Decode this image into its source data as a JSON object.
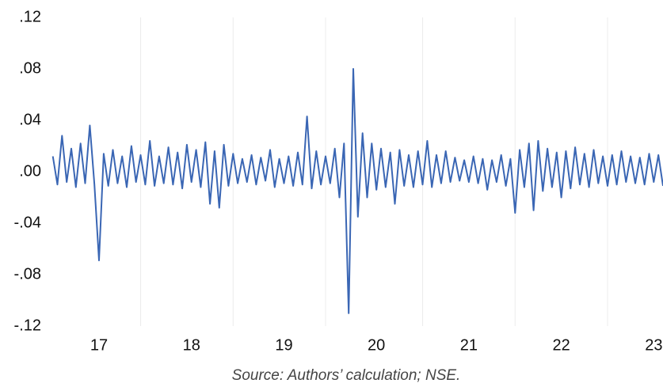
{
  "chart_data": {
    "type": "line",
    "caption": "Source: Authors’ calculation; NSE.",
    "x": [
      16.5,
      16.55,
      16.6,
      16.65,
      16.7,
      16.75,
      16.8,
      16.85,
      16.9,
      16.95,
      17.0,
      17.05,
      17.1,
      17.15,
      17.2,
      17.25,
      17.3,
      17.35,
      17.4,
      17.45,
      17.5,
      17.55,
      17.6,
      17.65,
      17.7,
      17.75,
      17.8,
      17.85,
      17.9,
      17.95,
      18.0,
      18.05,
      18.1,
      18.15,
      18.2,
      18.25,
      18.3,
      18.35,
      18.4,
      18.45,
      18.5,
      18.55,
      18.6,
      18.65,
      18.7,
      18.75,
      18.8,
      18.85,
      18.9,
      18.95,
      19.0,
      19.05,
      19.1,
      19.15,
      19.2,
      19.25,
      19.3,
      19.35,
      19.4,
      19.45,
      19.5,
      19.55,
      19.6,
      19.65,
      19.7,
      19.75,
      19.8,
      19.85,
      19.9,
      19.95,
      20.0,
      20.05,
      20.1,
      20.15,
      20.2,
      20.25,
      20.3,
      20.35,
      20.4,
      20.45,
      20.5,
      20.55,
      20.6,
      20.65,
      20.7,
      20.75,
      20.8,
      20.85,
      20.9,
      20.95,
      21.0,
      21.05,
      21.1,
      21.15,
      21.2,
      21.25,
      21.3,
      21.35,
      21.4,
      21.45,
      21.5,
      21.55,
      21.6,
      21.65,
      21.7,
      21.75,
      21.8,
      21.85,
      21.9,
      21.95,
      22.0,
      22.05,
      22.1,
      22.15,
      22.2,
      22.25,
      22.3,
      22.35,
      22.4,
      22.45,
      22.5,
      22.55,
      22.6,
      22.65,
      22.7,
      22.75,
      22.8,
      22.85,
      22.9,
      22.95,
      23.0,
      23.05,
      23.1
    ],
    "series": [
      {
        "color": "#3a66b4",
        "values": [
          0.012,
          -0.01,
          0.028,
          -0.008,
          0.018,
          -0.012,
          0.022,
          -0.009,
          0.036,
          -0.01,
          -0.069,
          0.014,
          -0.011,
          0.017,
          -0.009,
          0.012,
          -0.012,
          0.02,
          -0.008,
          0.013,
          -0.01,
          0.024,
          -0.011,
          0.012,
          -0.009,
          0.019,
          -0.01,
          0.015,
          -0.013,
          0.021,
          -0.008,
          0.017,
          -0.012,
          0.023,
          -0.025,
          0.016,
          -0.028,
          0.021,
          -0.011,
          0.014,
          -0.009,
          0.01,
          -0.008,
          0.013,
          -0.01,
          0.011,
          -0.007,
          0.017,
          -0.012,
          0.01,
          -0.009,
          0.012,
          -0.011,
          0.015,
          -0.01,
          0.043,
          -0.013,
          0.016,
          -0.01,
          0.012,
          -0.009,
          0.018,
          -0.02,
          0.022,
          -0.11,
          0.08,
          -0.035,
          0.03,
          -0.02,
          0.022,
          -0.014,
          0.018,
          -0.012,
          0.015,
          -0.025,
          0.017,
          -0.011,
          0.013,
          -0.012,
          0.016,
          -0.01,
          0.024,
          -0.012,
          0.013,
          -0.009,
          0.016,
          -0.008,
          0.011,
          -0.007,
          0.009,
          -0.008,
          0.012,
          -0.009,
          0.01,
          -0.014,
          0.009,
          -0.008,
          0.013,
          -0.011,
          0.01,
          -0.032,
          0.017,
          -0.012,
          0.022,
          -0.03,
          0.024,
          -0.015,
          0.018,
          -0.012,
          0.015,
          -0.02,
          0.016,
          -0.013,
          0.019,
          -0.01,
          0.014,
          -0.012,
          0.017,
          -0.009,
          0.012,
          -0.011,
          0.013,
          -0.01,
          0.016,
          -0.008,
          0.012,
          -0.009,
          0.011,
          -0.01,
          0.014,
          -0.008,
          0.013,
          -0.011
        ]
      }
    ],
    "xlim": [
      16.46,
      23.1
    ],
    "xticks": [
      17,
      18,
      19,
      20,
      21,
      22,
      23
    ],
    "xgrid": [
      17.45,
      18.45,
      19.45,
      20.5,
      21.5,
      22.5
    ],
    "ylim": [
      -0.12,
      0.12
    ],
    "yticks": [
      {
        "value": -0.12,
        "label": "-.12"
      },
      {
        "value": -0.08,
        "label": "-.08"
      },
      {
        "value": -0.04,
        "label": "-.04"
      },
      {
        "value": 0,
        "label": ".00"
      },
      {
        "value": 0.04,
        "label": ".04"
      },
      {
        "value": 0.08,
        "label": ".08"
      },
      {
        "value": 0.12,
        "label": ".12"
      }
    ],
    "grid": true
  }
}
